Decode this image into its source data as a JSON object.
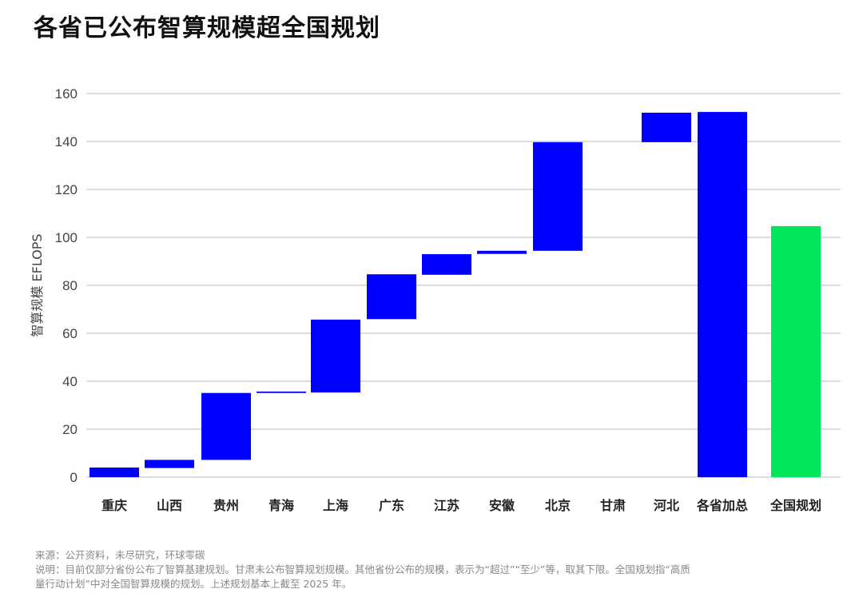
{
  "chart_data": {
    "type": "waterfall",
    "title": "各省已公布智算规模超全国规划",
    "ylabel": "智算规模 EFLOPS",
    "xlabel": "",
    "ylim": [
      0,
      160
    ],
    "yticks": [
      0,
      20,
      40,
      60,
      80,
      100,
      120,
      140,
      160
    ],
    "grid": true,
    "categories": [
      "重庆",
      "山西",
      "贵州",
      "青海",
      "上海",
      "广东",
      "江苏",
      "安徽",
      "北京",
      "甘肃",
      "河北",
      "各省加总",
      "全国规划"
    ],
    "ranges": [
      [
        0,
        4
      ],
      [
        3.8,
        7.2
      ],
      [
        7.2,
        35.1
      ],
      [
        35.1,
        35.7
      ],
      [
        35.3,
        65.7
      ],
      [
        65.9,
        84.6
      ],
      [
        84.4,
        93
      ],
      [
        93.1,
        94.4
      ],
      [
        94.4,
        139.7
      ],
      null,
      [
        139.7,
        152
      ],
      [
        0,
        152.3
      ],
      [
        0,
        104.7
      ]
    ],
    "colors": {
      "province": "#0000ff",
      "total": "#0000ff",
      "national": "#00e65a"
    }
  },
  "notes": {
    "source": "来源：公开资料，未尽研究，环球零碳",
    "desc1": "说明：目前仅部分省份公布了智算基建规划。甘肃未公布智算规划规模。其他省份公布的规模，表示为“超过”“至少”等，取其下限。全国规划指“高质",
    "desc2": "量行动计划”中对全国智算规模的规划。上述规划基本上截至 2025 年。"
  }
}
